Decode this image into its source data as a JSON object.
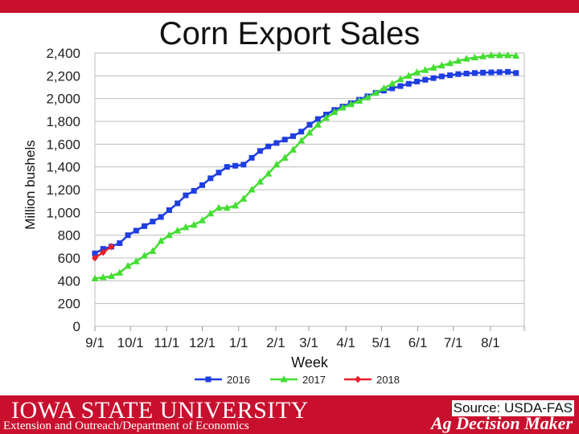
{
  "slide": {
    "title": "Corn Export Sales",
    "university": "IOWA STATE UNIVERSITY",
    "department": "Extension and Outreach/Department of Economics",
    "source": "Source: USDA-FAS",
    "brand": "Ag Decision Maker",
    "accent_color": "#c8102e"
  },
  "chart_data": {
    "type": "line",
    "title": "Corn Export Sales",
    "xlabel": "Week",
    "ylabel": "Million bushels",
    "ylim": [
      0,
      2400
    ],
    "yticks": [
      0,
      200,
      400,
      600,
      800,
      1000,
      1200,
      1400,
      1600,
      1800,
      2000,
      2200,
      2400
    ],
    "ytick_labels": [
      "0",
      "200",
      "400",
      "600",
      "800",
      "1,000",
      "1,200",
      "1,400",
      "1,600",
      "1,800",
      "2,000",
      "2,200",
      "2,400"
    ],
    "xlim": [
      0,
      52
    ],
    "x_ticks": [
      {
        "label": "9/1",
        "week": 0
      },
      {
        "label": "10/1",
        "week": 4.3
      },
      {
        "label": "11/1",
        "week": 8.7
      },
      {
        "label": "12/1",
        "week": 13
      },
      {
        "label": "1/1",
        "week": 17.4
      },
      {
        "label": "2/1",
        "week": 21.9
      },
      {
        "label": "3/1",
        "week": 25.9
      },
      {
        "label": "4/1",
        "week": 30.4
      },
      {
        "label": "5/1",
        "week": 34.7
      },
      {
        "label": "6/1",
        "week": 39.1
      },
      {
        "label": "7/1",
        "week": 43.4
      },
      {
        "label": "8/1",
        "week": 47.9
      }
    ],
    "grid": true,
    "legend_position": "bottom",
    "series": [
      {
        "name": "2016",
        "color": "#1f3ee0",
        "marker": "square",
        "values": [
          640,
          680,
          700,
          730,
          800,
          840,
          880,
          920,
          960,
          1020,
          1080,
          1150,
          1190,
          1240,
          1300,
          1350,
          1400,
          1410,
          1420,
          1480,
          1540,
          1580,
          1610,
          1640,
          1670,
          1710,
          1770,
          1820,
          1860,
          1900,
          1930,
          1960,
          1990,
          2020,
          2050,
          2070,
          2090,
          2110,
          2130,
          2150,
          2165,
          2180,
          2195,
          2205,
          2215,
          2220,
          2225,
          2228,
          2230,
          2232,
          2235,
          2225
        ]
      },
      {
        "name": "2017",
        "color": "#44dd33",
        "marker": "triangle",
        "values": [
          420,
          430,
          440,
          470,
          530,
          570,
          620,
          660,
          750,
          800,
          840,
          870,
          890,
          930,
          990,
          1040,
          1040,
          1060,
          1120,
          1200,
          1270,
          1340,
          1420,
          1480,
          1550,
          1630,
          1700,
          1770,
          1830,
          1880,
          1920,
          1950,
          1980,
          2010,
          2050,
          2090,
          2130,
          2170,
          2200,
          2230,
          2250,
          2270,
          2290,
          2310,
          2330,
          2350,
          2360,
          2370,
          2380,
          2380,
          2380,
          2375
        ]
      },
      {
        "name": "2018",
        "color": "#e8202a",
        "marker": "diamond",
        "values": [
          600,
          650,
          700
        ]
      }
    ]
  }
}
